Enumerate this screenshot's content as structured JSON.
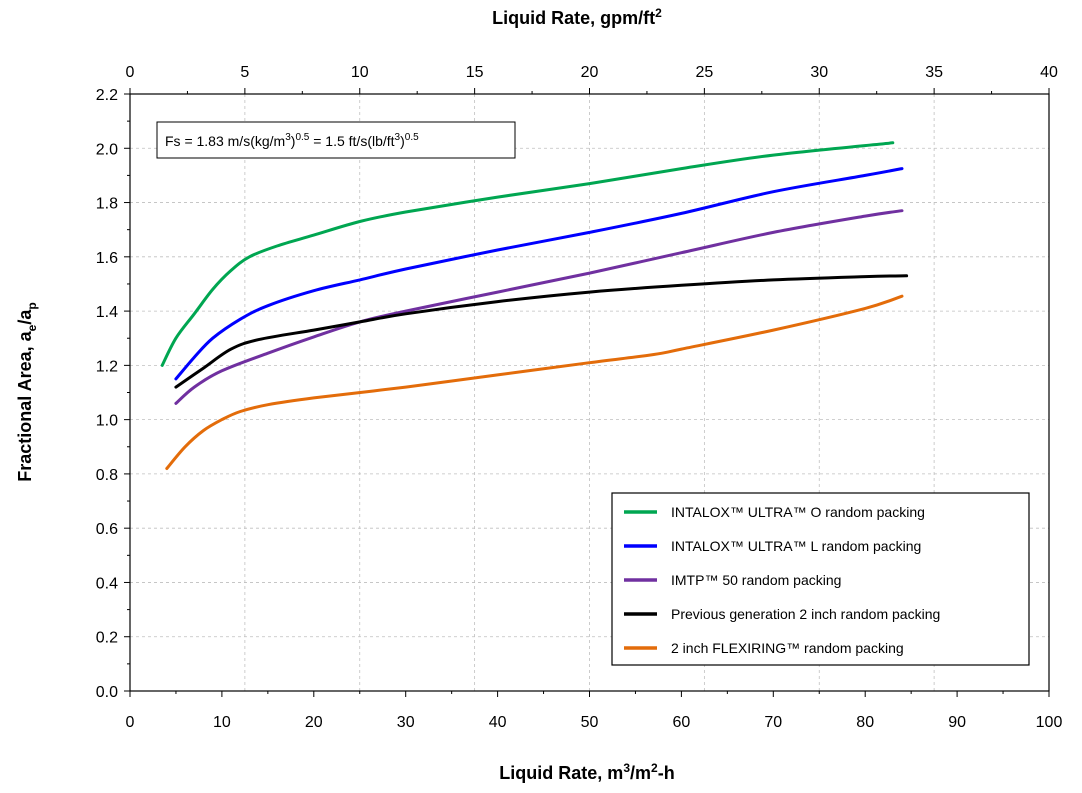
{
  "chart_data": {
    "type": "line",
    "title": "",
    "xlabel": {
      "main": "Liquid Rate,  m",
      "sup1": "3",
      "mid": "/m",
      "sup2": "2",
      "end": "-h"
    },
    "x2label": {
      "main": "Liquid Rate,  gpm/ft",
      "sup": "2"
    },
    "ylabel": {
      "main": "Fractional Area,  a",
      "sub1": "e",
      "mid": "/a",
      "sub2": "p"
    },
    "xlim": [
      0,
      100
    ],
    "x2lim": [
      0,
      40
    ],
    "ylim": [
      0,
      2.2
    ],
    "grid": true,
    "x_ticks": [
      "0",
      "10",
      "20",
      "30",
      "40",
      "50",
      "60",
      "70",
      "80",
      "90",
      "100"
    ],
    "x2_ticks": [
      "0",
      "5",
      "10",
      "15",
      "20",
      "25",
      "30",
      "35",
      "40"
    ],
    "y_ticks": [
      "0.0",
      "0.2",
      "0.4",
      "0.6",
      "0.8",
      "1.0",
      "1.2",
      "1.4",
      "1.6",
      "1.8",
      "2.0",
      "2.2"
    ],
    "annotation": {
      "a": "Fs = 1.83 m/s(kg/m",
      "b": "3",
      "c": ")",
      "d": "0.5",
      "e": " = 1.5 ft/s(lb/ft",
      "f": "3",
      "g": ")",
      "h": "0.5"
    },
    "legend_position": "bottom-right",
    "series": [
      {
        "name": "INTALOX™ ULTRA™ O random packing",
        "color": "#00a651",
        "points": [
          [
            3.5,
            1.2
          ],
          [
            5,
            1.3
          ],
          [
            7,
            1.39
          ],
          [
            9,
            1.48
          ],
          [
            11,
            1.55
          ],
          [
            13,
            1.6
          ],
          [
            16,
            1.64
          ],
          [
            20,
            1.68
          ],
          [
            25,
            1.73
          ],
          [
            30,
            1.765
          ],
          [
            40,
            1.82
          ],
          [
            50,
            1.87
          ],
          [
            60,
            1.925
          ],
          [
            70,
            1.975
          ],
          [
            83,
            2.02
          ]
        ]
      },
      {
        "name": "INTALOX™ ULTRA™ L random packing",
        "color": "#0000ff",
        "points": [
          [
            5,
            1.15
          ],
          [
            7,
            1.23
          ],
          [
            9,
            1.3
          ],
          [
            12,
            1.37
          ],
          [
            15,
            1.42
          ],
          [
            20,
            1.475
          ],
          [
            25,
            1.515
          ],
          [
            30,
            1.555
          ],
          [
            40,
            1.625
          ],
          [
            50,
            1.69
          ],
          [
            60,
            1.76
          ],
          [
            70,
            1.84
          ],
          [
            80,
            1.9
          ],
          [
            84,
            1.925
          ]
        ]
      },
      {
        "name": "IMTP™ 50 random packing",
        "color": "#7030a0",
        "points": [
          [
            5,
            1.06
          ],
          [
            7,
            1.12
          ],
          [
            10,
            1.18
          ],
          [
            15,
            1.245
          ],
          [
            20,
            1.305
          ],
          [
            25,
            1.36
          ],
          [
            30,
            1.4
          ],
          [
            40,
            1.47
          ],
          [
            50,
            1.54
          ],
          [
            60,
            1.615
          ],
          [
            70,
            1.69
          ],
          [
            80,
            1.75
          ],
          [
            84,
            1.77
          ]
        ]
      },
      {
        "name": "Previous generation 2 inch random packing",
        "color": "#000000",
        "points": [
          [
            5,
            1.12
          ],
          [
            8,
            1.19
          ],
          [
            11,
            1.26
          ],
          [
            14,
            1.295
          ],
          [
            20,
            1.33
          ],
          [
            25,
            1.36
          ],
          [
            30,
            1.39
          ],
          [
            40,
            1.435
          ],
          [
            50,
            1.47
          ],
          [
            60,
            1.495
          ],
          [
            70,
            1.515
          ],
          [
            80,
            1.527
          ],
          [
            84.5,
            1.53
          ]
        ]
      },
      {
        "name": "2 inch FLEXIRING™ random packing",
        "color": "#e36c0a",
        "points": [
          [
            4,
            0.82
          ],
          [
            6,
            0.9
          ],
          [
            8,
            0.96
          ],
          [
            10,
            1.0
          ],
          [
            12,
            1.03
          ],
          [
            15,
            1.055
          ],
          [
            20,
            1.08
          ],
          [
            30,
            1.12
          ],
          [
            40,
            1.165
          ],
          [
            50,
            1.21
          ],
          [
            57,
            1.24
          ],
          [
            60,
            1.26
          ],
          [
            70,
            1.33
          ],
          [
            80,
            1.41
          ],
          [
            84,
            1.455
          ]
        ]
      }
    ]
  }
}
